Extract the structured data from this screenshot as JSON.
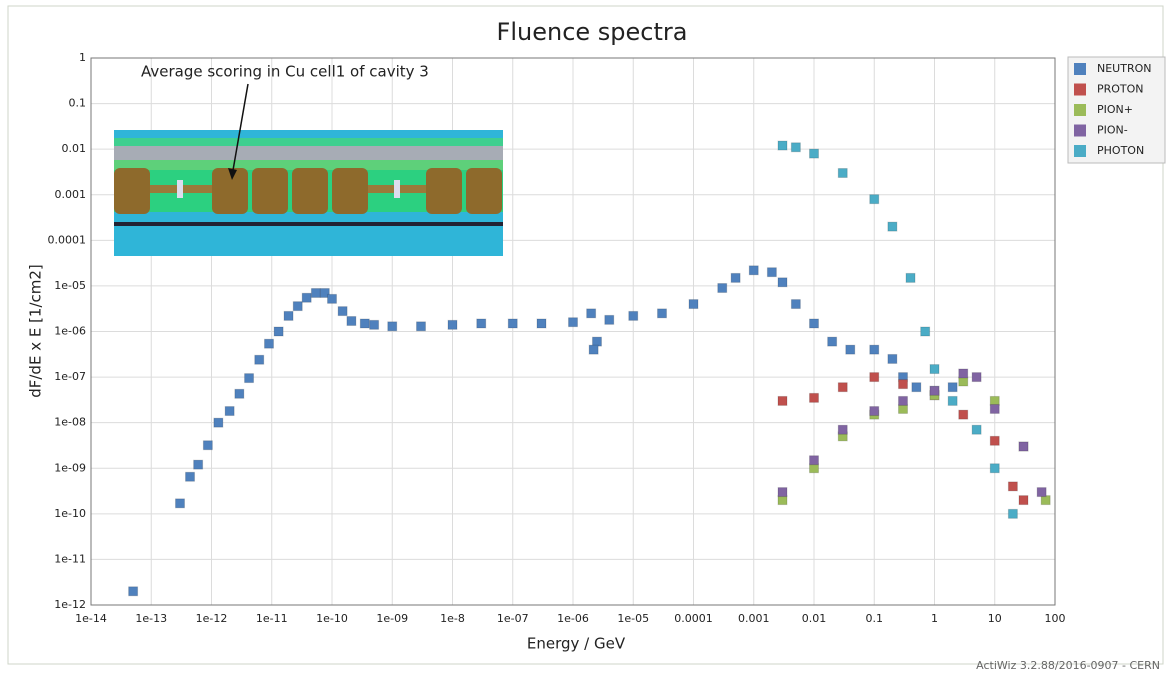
{
  "chart_data": {
    "type": "scatter",
    "title": "Fluence spectra",
    "xlabel": "Energy / GeV",
    "ylabel": "dF/dE x E [1/cm2]",
    "annotation": "Average scoring in Cu cell1 of cavity 3",
    "footer": "ActiWiz 3.2.88/2016-0907 - CERN",
    "xscale": "log",
    "yscale": "log",
    "grid": true,
    "legend": "right",
    "xlim": [
      1e-14,
      100
    ],
    "ylim": [
      1e-12,
      1
    ],
    "xticks": [
      1e-14,
      1e-13,
      1e-12,
      1e-11,
      1e-10,
      {
        "value": 1e-09,
        "label": "1e-09"
      },
      1e-08,
      {
        "value": 1e-07,
        "label": "1e-07"
      },
      {
        "value": 1e-06,
        "label": "1e-06"
      },
      {
        "value": 1e-05,
        "label": "1e-05"
      },
      0.0001,
      0.001,
      0.01,
      0.1,
      1,
      10,
      100
    ],
    "yticks": [
      1,
      0.1,
      0.01,
      0.001,
      0.0001,
      {
        "value": 1e-05,
        "label": "1e-05"
      },
      {
        "value": 1e-06,
        "label": "1e-06"
      },
      {
        "value": 1e-07,
        "label": "1e-07"
      },
      {
        "value": 1e-08,
        "label": "1e-08"
      },
      {
        "value": 1e-09,
        "label": "1e-09"
      },
      1e-10,
      1e-11,
      1e-12
    ],
    "series": [
      {
        "name": "NEUTRON",
        "color": "#4f81bd",
        "x": [
          5e-14,
          3e-13,
          4.4e-13,
          6e-13,
          8.7e-13,
          1.3e-12,
          2e-12,
          2.9e-12,
          4.2e-12,
          6.2e-12,
          9e-12,
          1.3e-11,
          1.9e-11,
          2.7e-11,
          3.8e-11,
          5.4e-11,
          7.6e-11,
          1e-10,
          1.5e-10,
          2.1e-10,
          3.5e-10,
          5e-10,
          1e-09,
          3e-09,
          1e-08,
          3e-08,
          1e-07,
          3e-07,
          1e-06,
          2e-06,
          2.5e-06,
          2.2e-06,
          4e-06,
          1e-05,
          3e-05,
          0.0001,
          0.0003,
          0.0005,
          0.001,
          0.002,
          0.003,
          0.005,
          0.01,
          0.02,
          0.04,
          0.1,
          0.2,
          0.3,
          0.5,
          1,
          2
        ],
        "values": [
          2e-12,
          1.7e-10,
          6.5e-10,
          1.2e-09,
          3.2e-09,
          1e-08,
          1.8e-08,
          4.3e-08,
          9.5e-08,
          2.4e-07,
          5.4e-07,
          1e-06,
          2.2e-06,
          3.6e-06,
          5.5e-06,
          7e-06,
          7e-06,
          5.2e-06,
          2.8e-06,
          1.7e-06,
          1.5e-06,
          1.4e-06,
          1.3e-06,
          1.3e-06,
          1.4e-06,
          1.5e-06,
          1.5e-06,
          1.5e-06,
          1.6e-06,
          2.5e-06,
          6e-07,
          4e-07,
          1.8e-06,
          2.2e-06,
          2.5e-06,
          4e-06,
          9e-06,
          1.5e-05,
          2.2e-05,
          2e-05,
          1.2e-05,
          4e-06,
          1.5e-06,
          6e-07,
          4e-07,
          4e-07,
          2.5e-07,
          1e-07,
          6e-08,
          5e-08,
          6e-08
        ]
      },
      {
        "name": "PROTON",
        "color": "#c0504d",
        "x": [
          0.003,
          0.01,
          0.03,
          0.1,
          0.3,
          1,
          3,
          10,
          20,
          30
        ],
        "values": [
          3e-08,
          3.5e-08,
          6e-08,
          1e-07,
          7e-08,
          4e-08,
          1.5e-08,
          4e-09,
          4e-10,
          2e-10
        ]
      },
      {
        "name": "PION+",
        "color": "#9bbb59",
        "x": [
          0.003,
          0.01,
          0.03,
          0.1,
          0.3,
          1,
          3,
          10,
          30,
          70
        ],
        "values": [
          2e-10,
          1e-09,
          5e-09,
          1.5e-08,
          2e-08,
          4e-08,
          8e-08,
          3e-08,
          3e-09,
          2e-10
        ]
      },
      {
        "name": "PION-",
        "color": "#8064a2",
        "x": [
          0.003,
          0.01,
          0.03,
          0.1,
          0.3,
          1,
          3,
          5,
          10,
          30,
          60
        ],
        "values": [
          3e-10,
          1.5e-09,
          7e-09,
          1.8e-08,
          3e-08,
          5e-08,
          1.2e-07,
          1e-07,
          2e-08,
          3e-09,
          3e-10
        ]
      },
      {
        "name": "PHOTON",
        "color": "#4bacc6",
        "x": [
          0.003,
          0.005,
          0.01,
          0.03,
          0.1,
          0.2,
          0.4,
          0.7,
          1,
          2,
          5,
          10,
          20
        ],
        "values": [
          0.012,
          0.011,
          0.008,
          0.003,
          0.0008,
          0.0002,
          1.5e-05,
          1e-06,
          1.5e-07,
          3e-08,
          7e-09,
          1e-09,
          1e-10
        ]
      }
    ]
  }
}
